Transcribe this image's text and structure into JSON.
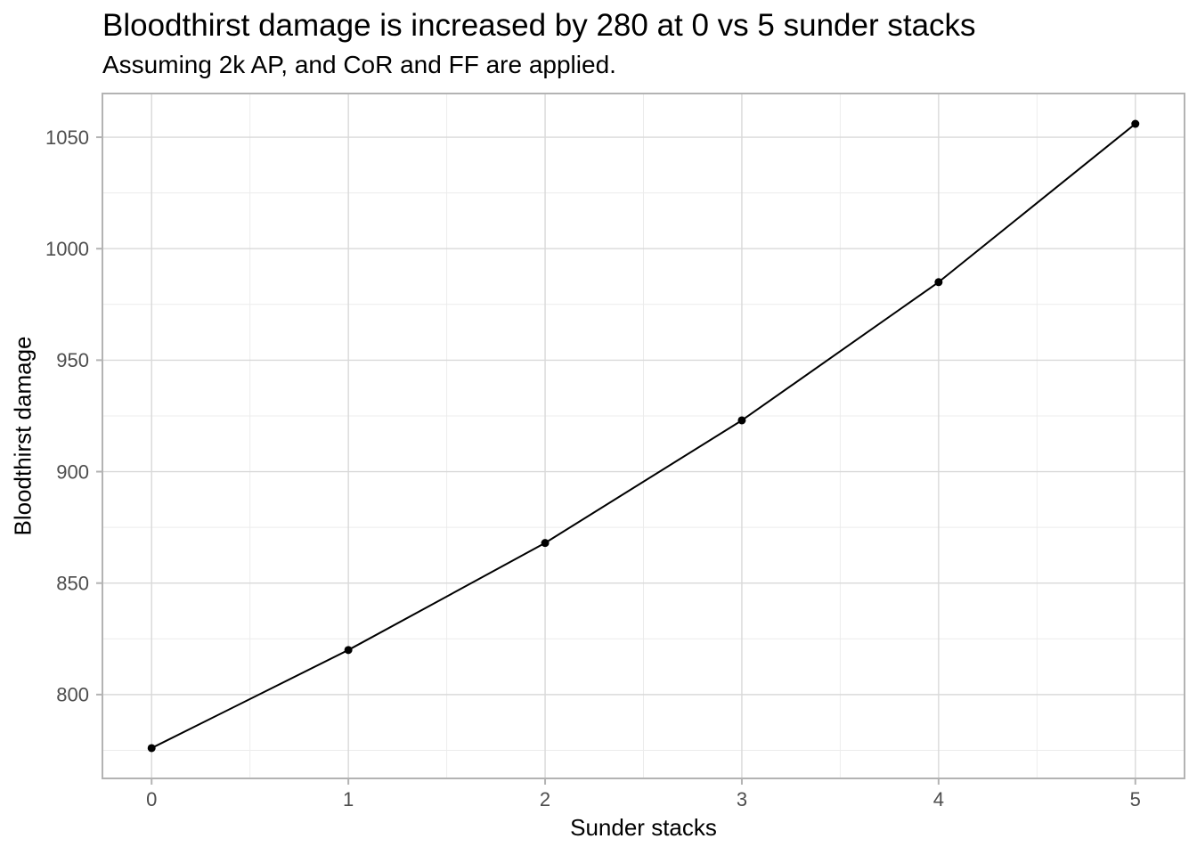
{
  "chart_data": {
    "type": "line",
    "title": "Bloodthirst damage is increased by 280 at 0 vs 5 sunder stacks",
    "subtitle": "Assuming 2k AP, and CoR and FF are applied.",
    "xlabel": "Sunder stacks",
    "ylabel": "Bloodthirst damage",
    "x": [
      0,
      1,
      2,
      3,
      4,
      5
    ],
    "y": [
      776,
      820,
      868,
      923,
      985,
      1056
    ],
    "xlim": [
      -0.25,
      5.25
    ],
    "ylim": [
      762.4,
      1069.6
    ],
    "x_ticks": [
      0,
      1,
      2,
      3,
      4,
      5
    ],
    "y_ticks": [
      800,
      850,
      900,
      950,
      1000,
      1050
    ],
    "x_minor_breaks": [
      0.5,
      1.5,
      2.5,
      3.5,
      4.5
    ],
    "y_minor_breaks": [
      775,
      825,
      875,
      925,
      975,
      1025
    ],
    "grid": "on",
    "legend": "none",
    "line_width": 2,
    "point_radius": 4.5,
    "tick_length": 7
  },
  "colors": {
    "background": "#ffffff",
    "panel_background": "#ffffff",
    "panel_border": "#b3b3b3",
    "grid_major": "#d9d9d9",
    "grid_minor": "#ececec",
    "tick": "#b3b3b3",
    "tick_label": "#4d4d4d",
    "series": "#000000",
    "title_text": "#000000"
  }
}
